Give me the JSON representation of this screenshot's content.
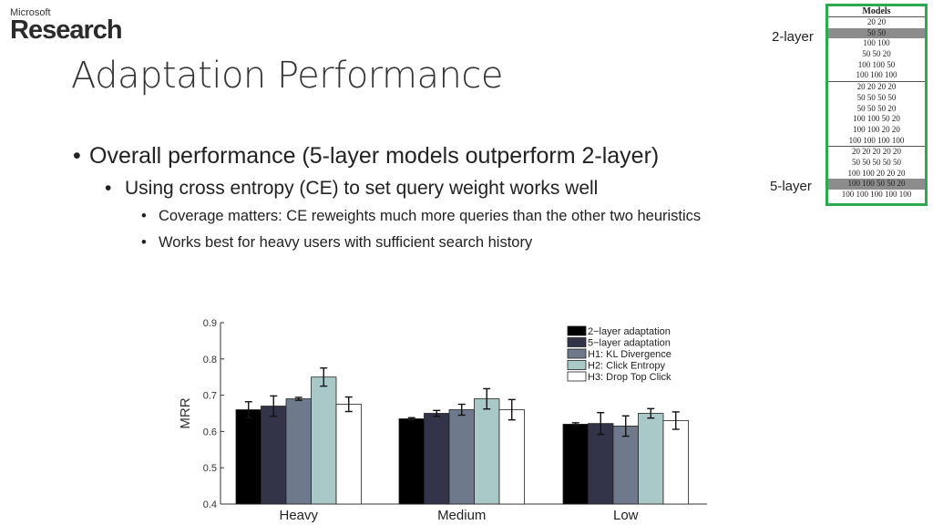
{
  "header": {
    "logo_top": "Microsoft",
    "logo_main": "Research",
    "title": "Adaptation Performance"
  },
  "bullets": {
    "l1": "Overall performance (5-layer models outperform 2-layer)",
    "l2": "Using cross entropy (CE) to set query weight works well",
    "l3a": "Coverage matters: CE reweights much more queries than the other two heuristics",
    "l3b": "Works best for heavy users with sufficient search history"
  },
  "models_table": {
    "header": "Models",
    "rows": [
      "20 20",
      "50 50",
      "100 100",
      "50 50 20",
      "100 100 50",
      "100 100 100",
      "20 20 20 20",
      "50 50 50 50",
      "50 50 50 20",
      "100 100 50 20",
      "100 100 20 20",
      "100 100 100 100",
      "20 20 20 20 20",
      "50 50 50 50 50",
      "100 100 20 20 20",
      "100 100 50 50 20",
      "100 100 100 100 100"
    ],
    "highlighted": [
      "50 50",
      "100 100 50 50 20"
    ],
    "label_2layer": "2-layer",
    "label_5layer": "5-layer",
    "highlight_color": "#8c8c8c",
    "border_color": "#2daa4f"
  },
  "chart_data": {
    "type": "bar",
    "title": "",
    "xlabel": "",
    "ylabel": "MRR",
    "ylim": [
      0.4,
      0.9
    ],
    "yticks": [
      "0.4",
      "0.5",
      "0.6",
      "0.7",
      "0.8",
      "0.9"
    ],
    "categories": [
      "Heavy",
      "Medium",
      "Low"
    ],
    "legend_position": "top-right",
    "series": [
      {
        "name": "2−layer adaptation",
        "color": "#000000",
        "values": [
          0.66,
          0.635,
          0.62
        ],
        "errors": [
          0.022,
          0.003,
          0.004
        ]
      },
      {
        "name": "5−layer adaptation",
        "color": "#33334a",
        "values": [
          0.67,
          0.65,
          0.622
        ],
        "errors": [
          0.028,
          0.008,
          0.03
        ]
      },
      {
        "name": "H1: KL Divergence",
        "color": "#6e7a8c",
        "values": [
          0.69,
          0.66,
          0.615
        ],
        "errors": [
          0.004,
          0.015,
          0.028
        ]
      },
      {
        "name": "H2: Click Entropy",
        "color": "#a9c9c7",
        "values": [
          0.75,
          0.69,
          0.65
        ],
        "errors": [
          0.025,
          0.028,
          0.013
        ]
      },
      {
        "name": "H3: Drop Top Click",
        "color": "#ffffff",
        "values": [
          0.675,
          0.66,
          0.63
        ],
        "errors": [
          0.02,
          0.028,
          0.024
        ]
      }
    ]
  }
}
